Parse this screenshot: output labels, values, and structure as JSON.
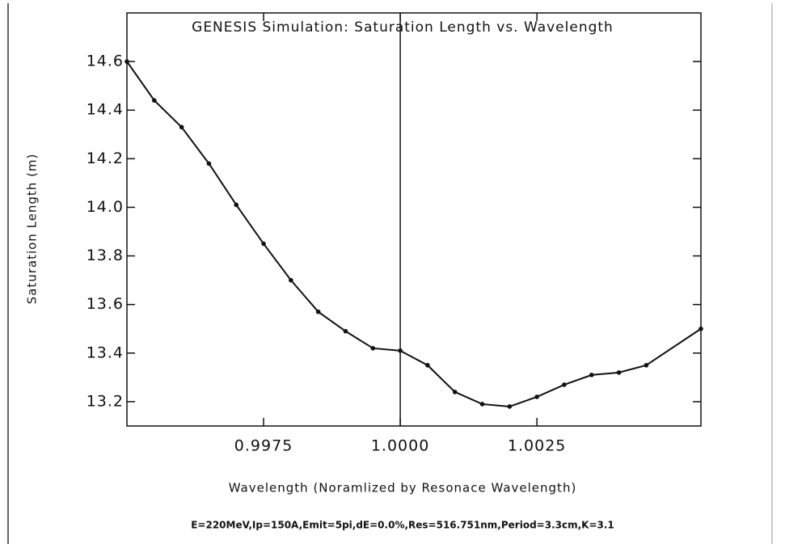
{
  "chart_data": {
    "type": "line",
    "title": "GENESIS Simulation: Saturation Length vs. Wavelength",
    "xlabel": "Wavelength (Noramlized by Resonace Wavelength)",
    "ylabel": "Saturation Length (m)",
    "footnote": "E=220MeV,Ip=150A,Emit=5pi,dE=0.0%,Res=516.751nm,Period=3.3cm,K=3.1",
    "x": [
      0.995,
      0.9955,
      0.996,
      0.9965,
      0.997,
      0.9975,
      0.998,
      0.9985,
      0.999,
      0.9995,
      1.0,
      1.0005,
      1.001,
      1.0015,
      1.002,
      1.0025,
      1.003,
      1.0035,
      1.004,
      1.0045,
      1.0055
    ],
    "series": [
      {
        "name": "Saturation Length",
        "color": "#111111",
        "values": [
          14.6,
          14.44,
          14.33,
          14.18,
          14.01,
          13.85,
          13.7,
          13.57,
          13.49,
          13.42,
          13.41,
          13.35,
          13.24,
          13.19,
          13.18,
          13.22,
          13.27,
          13.31,
          13.32,
          13.35,
          13.5
        ]
      }
    ],
    "vline": 1.0,
    "xlim": [
      0.995,
      1.0055
    ],
    "xticks": [
      0.9975,
      {
        "value": 1.0,
        "label": "1.0000"
      },
      1.0025
    ],
    "ylim": [
      13.1,
      14.8
    ],
    "yticks": [
      13.2,
      13.4,
      13.6,
      13.8,
      {
        "value": 14.0,
        "label": "14.0"
      },
      14.2,
      14.4,
      14.6
    ],
    "grid": false,
    "markers": true
  }
}
